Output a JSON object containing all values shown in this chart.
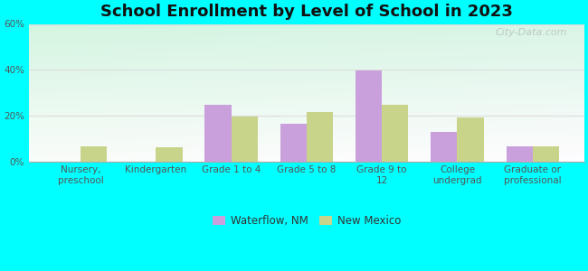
{
  "title": "School Enrollment by Level of School in 2023",
  "categories": [
    "Nursery,\npreschool",
    "Kindergarten",
    "Grade 1 to 4",
    "Grade 5 to 8",
    "Grade 9 to\n12",
    "College\nundergrad",
    "Graduate or\nprofessional"
  ],
  "waterflow_values": [
    0,
    0,
    24.5,
    16.5,
    39.5,
    13.0,
    6.5
  ],
  "newmexico_values": [
    6.5,
    6.0,
    19.5,
    21.5,
    24.5,
    19.0,
    6.5
  ],
  "waterflow_color": "#c9a0dc",
  "newmexico_color": "#c8d48a",
  "ylim": [
    0,
    60
  ],
  "yticks": [
    0,
    20,
    40,
    60
  ],
  "ytick_labels": [
    "0%",
    "20%",
    "40%",
    "60%"
  ],
  "background_color": "#00ffff",
  "legend_waterflow": "Waterflow, NM",
  "legend_newmexico": "New Mexico",
  "watermark": "City-Data.com",
  "bar_width": 0.35,
  "title_fontsize": 13,
  "axis_fontsize": 7.5
}
